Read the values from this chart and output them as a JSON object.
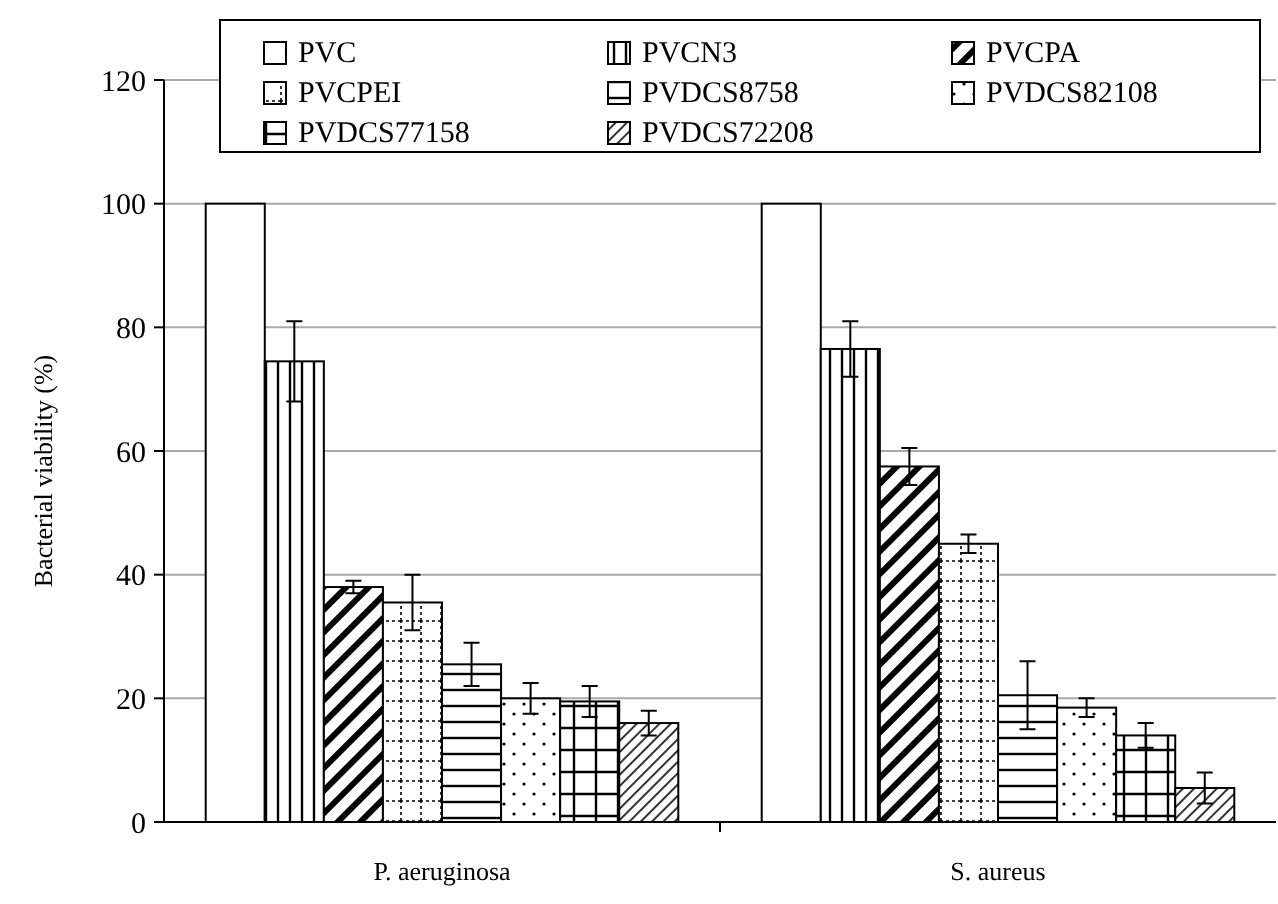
{
  "chart_data": {
    "type": "bar",
    "ylabel": "Bacterial viability (%)",
    "categories": [
      "P. aeruginosa",
      "S. aureus"
    ],
    "ylim": [
      0,
      120
    ],
    "yticks": [
      0,
      20,
      40,
      60,
      80,
      100,
      120
    ],
    "grid": "y",
    "legend": "top",
    "series": [
      {
        "name": "PVC",
        "color": "#000000",
        "values": [
          100,
          100
        ],
        "errors": [
          null,
          null
        ]
      },
      {
        "name": "PVCN3",
        "color": "#000000",
        "values": [
          74.5,
          76.5
        ],
        "errors": [
          6.5,
          4.5
        ]
      },
      {
        "name": "PVCPA",
        "color": "#000000",
        "values": [
          38,
          57.5
        ],
        "errors": [
          1,
          3
        ]
      },
      {
        "name": "PVCPEI",
        "color": "#000000",
        "values": [
          35.5,
          45
        ],
        "errors": [
          4.5,
          1.5
        ]
      },
      {
        "name": "PVDCS8758",
        "color": "#000000",
        "values": [
          25.5,
          20.5
        ],
        "errors": [
          3.5,
          5.5
        ]
      },
      {
        "name": "PVDCS82108",
        "color": "#000000",
        "values": [
          20,
          18.5
        ],
        "errors": [
          2.5,
          1.5
        ]
      },
      {
        "name": "PVDCS77158",
        "color": "#000000",
        "values": [
          19.5,
          14
        ],
        "errors": [
          2.5,
          2
        ]
      },
      {
        "name": "PVDCS72208",
        "color": "#000000",
        "values": [
          16,
          5.5
        ],
        "errors": [
          2,
          2.5
        ]
      }
    ]
  }
}
